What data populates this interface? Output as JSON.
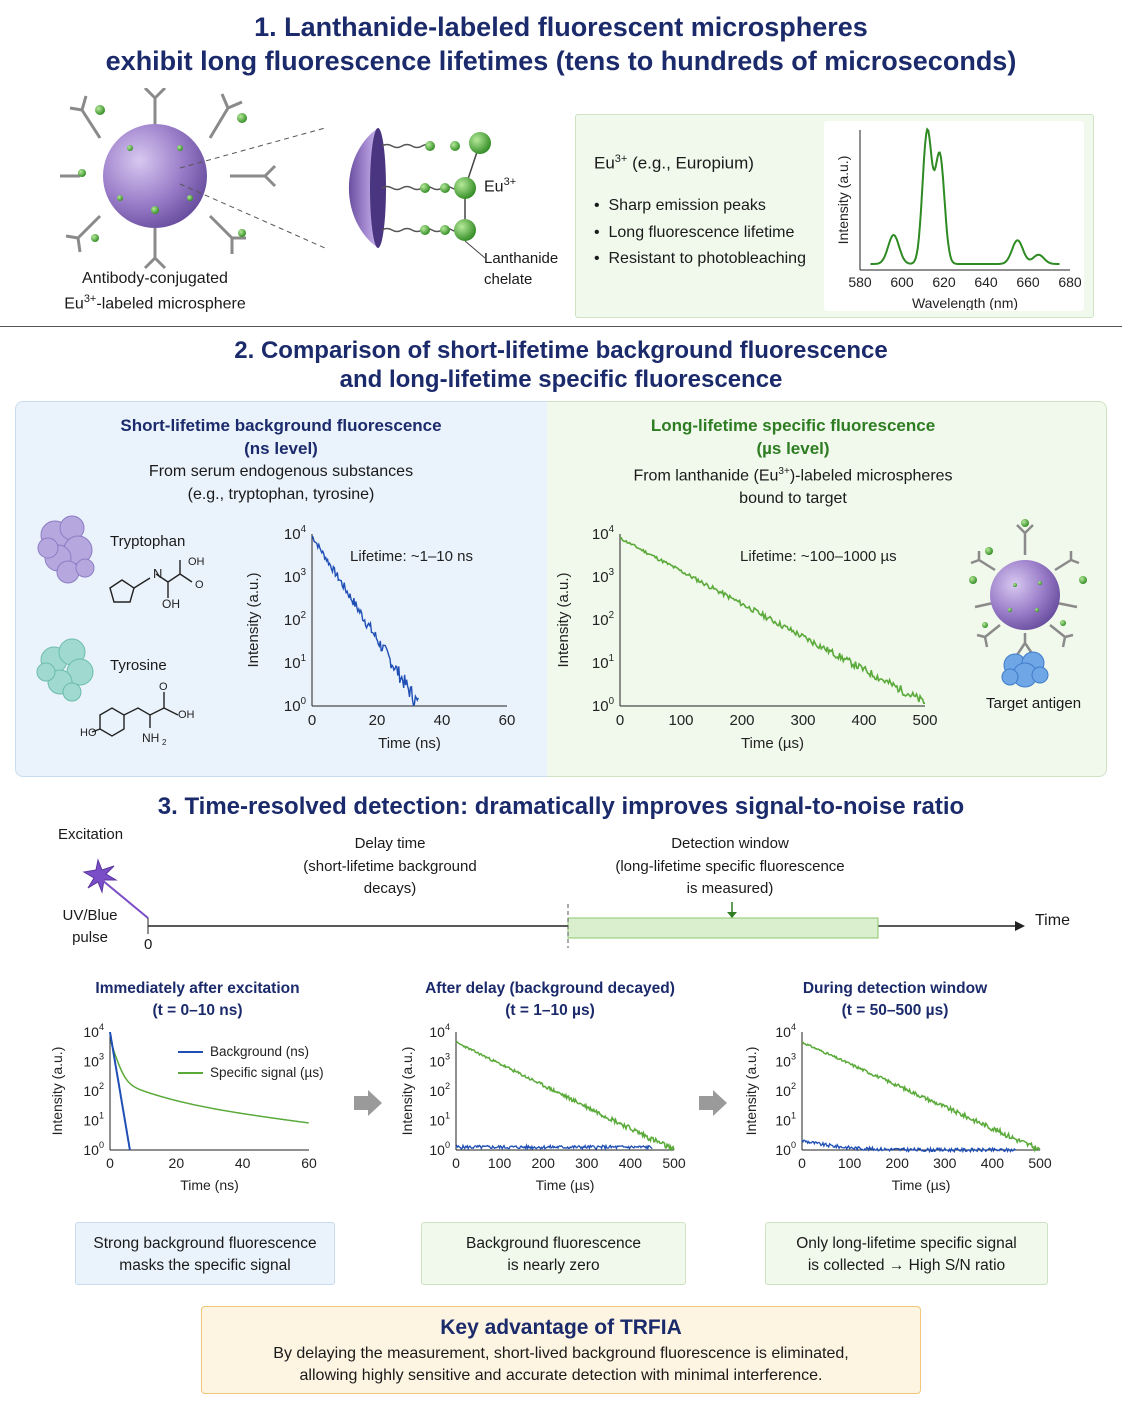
{
  "section1": {
    "title_line1": "1. Lanthanide-labeled fluorescent microspheres",
    "title_line2": "exhibit long fluorescence lifetimes (tens to hundreds of microseconds)",
    "microsphere_caption_line1": "Antibody-conjugated",
    "microsphere_caption_line2_pre": "Eu",
    "microsphere_caption_line2_sup": "3+",
    "microsphere_caption_line2_post": "-labeled microsphere",
    "eu_label": "Eu",
    "eu_sup": "3+",
    "chelate_label_line1": "Lanthanide",
    "chelate_label_line2": "chelate",
    "info_title_pre": "Eu",
    "info_title_sup": "3+",
    "info_title_post": " (e.g., Europium)",
    "bullets": [
      "Sharp emission peaks",
      "Long fluorescence lifetime",
      "Resistant to photobleaching"
    ]
  },
  "section2": {
    "title_line1": "2. Comparison of short-lifetime background fluorescence",
    "title_line2": "and long-lifetime specific fluorescence",
    "left": {
      "heading_line1": "Short-lifetime background fluorescence",
      "heading_line2": "(ns level)",
      "sub_line1": "From serum endogenous substances",
      "sub_line2": "(e.g., tryptophan, tyrosine)",
      "molecule1": "Tryptophan",
      "molecule2": "Tyrosine",
      "lifetime_label": "Lifetime: ~1–10 ns"
    },
    "right": {
      "heading_line1": "Long-lifetime specific fluorescence",
      "heading_line2": "(µs level)",
      "sub_line1_pre": "From lanthanide (Eu",
      "sub_line1_sup": "3+",
      "sub_line1_post": ")-labeled microspheres",
      "sub_line2": "bound to target",
      "lifetime_label": "Lifetime: ~100–1000 µs",
      "target_label": "Target antigen"
    }
  },
  "section3": {
    "title": "3. Time-resolved detection: dramatically improves signal-to-noise ratio",
    "excitation": "Excitation",
    "pulse_line1": "UV/Blue",
    "pulse_line2": "pulse",
    "zero": "0",
    "delay_line1": "Delay time",
    "delay_line2": "(short-lifetime background",
    "delay_line3": "decays)",
    "window_line1": "Detection window",
    "window_line2": "(long-lifetime specific fluorescence",
    "window_line3": "is measured)",
    "time_label": "Time",
    "panel1_title1": "Immediately after excitation",
    "panel1_title2": "(t = 0–10 ns)",
    "panel2_title1": "After delay (background decayed)",
    "panel2_title2": "(t = 1–10 µs)",
    "panel3_title1": "During detection window",
    "panel3_title2": "(t = 50–500 µs)",
    "box1_line1": "Strong background fluorescence",
    "box1_line2": "masks the specific signal",
    "box2_line1": "Background fluorescence",
    "box2_line2": "is nearly zero",
    "box3_line1": "Only long-lifetime specific signal",
    "box3_line2": "is collected → High S/N ratio"
  },
  "key": {
    "title": "Key advantage of TRFIA",
    "line1": "By delaying the measurement, short-lived background fluorescence is eliminated,",
    "line2": "allowing highly sensitive and accurate detection with minimal interference."
  },
  "colors": {
    "navy": "#1b2a6b",
    "green": "#2e7d22",
    "blue_curve": "#1f4fb5",
    "green_curve": "#5aaa3a",
    "purple": "#8a6cc0"
  },
  "chart_data": [
    {
      "type": "line",
      "name": "emission-spectrum",
      "xlabel": "Wavelength (nm)",
      "ylabel": "Intensity (a.u.)",
      "xlim": [
        580,
        680
      ],
      "xticks": [
        580,
        600,
        620,
        640,
        660,
        680
      ],
      "peaks": [
        {
          "x": 596,
          "y": 0.22
        },
        {
          "x": 612,
          "y": 1.0
        },
        {
          "x": 618,
          "y": 0.82
        },
        {
          "x": 655,
          "y": 0.18
        },
        {
          "x": 665,
          "y": 0.07
        }
      ]
    },
    {
      "type": "line",
      "name": "background-decay",
      "xlabel": "Time (ns)",
      "ylabel": "Intensity (a.u.)",
      "xlim": [
        0,
        60
      ],
      "xticks": [
        0,
        20,
        40,
        60
      ],
      "ylog": [
        0,
        4
      ],
      "yticks": [
        "10^0",
        "10^1",
        "10^2",
        "10^3",
        "10^4"
      ],
      "series": [
        {
          "x": [
            0,
            33
          ],
          "y": [
            10000,
            1
          ]
        }
      ]
    },
    {
      "type": "line",
      "name": "specific-decay",
      "xlabel": "Time (µs)",
      "ylabel": "Intensity (a.u.)",
      "xlim": [
        0,
        500
      ],
      "xticks": [
        0,
        100,
        200,
        300,
        400,
        500
      ],
      "ylog": [
        0,
        4
      ],
      "series": [
        {
          "x": [
            0,
            500
          ],
          "y": [
            10000,
            1
          ]
        }
      ]
    },
    {
      "type": "line",
      "name": "panel-immediate",
      "xlabel": "Time (ns)",
      "ylabel": "Intensity (a.u.)",
      "xlim": [
        0,
        60
      ],
      "xticks": [
        0,
        20,
        40,
        60
      ],
      "ylog": [
        0,
        4
      ],
      "series": [
        {
          "name": "Background (ns)",
          "x": [
            0,
            6
          ],
          "y": [
            10000,
            1
          ]
        },
        {
          "name": "Specific signal (µs)",
          "x": [
            0,
            60
          ],
          "y": [
            10000,
            2
          ]
        }
      ]
    },
    {
      "type": "line",
      "name": "panel-after-delay",
      "xlabel": "Time (µs)",
      "ylabel": "Intensity (a.u.)",
      "xlim": [
        0,
        500
      ],
      "xticks": [
        0,
        100,
        200,
        300,
        400,
        500
      ],
      "ylog": [
        0,
        4
      ],
      "series": [
        {
          "x": [
            0,
            450
          ],
          "y": [
            1.3,
            1.3
          ]
        },
        {
          "x": [
            0,
            500
          ],
          "y": [
            5000,
            1
          ]
        }
      ]
    },
    {
      "type": "line",
      "name": "panel-detection-window",
      "xlabel": "Time (µs)",
      "ylabel": "Intensity (a.u.)",
      "xlim": [
        0,
        500
      ],
      "xticks": [
        0,
        100,
        200,
        300,
        400,
        500
      ],
      "ylog": [
        0,
        4
      ],
      "series": [
        {
          "x": [
            0,
            450
          ],
          "y": [
            2,
            1
          ]
        },
        {
          "x": [
            0,
            500
          ],
          "y": [
            5000,
            1
          ]
        }
      ]
    }
  ]
}
